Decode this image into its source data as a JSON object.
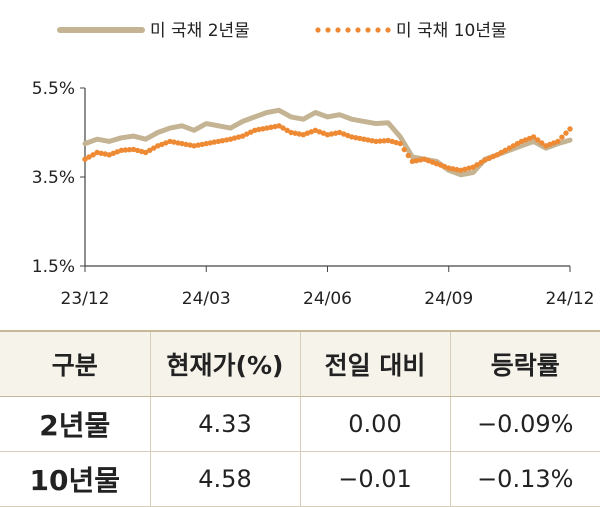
{
  "chart_data": {
    "type": "line",
    "title": "",
    "xlabel": "",
    "ylabel": "",
    "x_ticks": [
      "23/12",
      "24/03",
      "24/06",
      "24/09",
      "24/12"
    ],
    "y_ticks": [
      "5.5%",
      "3.5%",
      "1.5%"
    ],
    "ylim": [
      1.5,
      5.5
    ],
    "xlim": [
      0,
      12
    ],
    "grid": false,
    "legend_position": "top",
    "series": [
      {
        "name": "미 국채 2년물",
        "style": "solid",
        "color": "#c4b493",
        "x": [
          0,
          0.3,
          0.6,
          0.9,
          1.2,
          1.5,
          1.8,
          2.1,
          2.4,
          2.7,
          3.0,
          3.3,
          3.6,
          3.9,
          4.2,
          4.5,
          4.8,
          5.1,
          5.4,
          5.7,
          6.0,
          6.3,
          6.6,
          6.9,
          7.2,
          7.5,
          7.8,
          8.1,
          8.4,
          8.7,
          9.0,
          9.3,
          9.6,
          9.9,
          10.2,
          10.5,
          10.8,
          11.1,
          11.4,
          11.7,
          12.0
        ],
        "values": [
          4.25,
          4.35,
          4.3,
          4.38,
          4.42,
          4.35,
          4.5,
          4.6,
          4.65,
          4.55,
          4.7,
          4.65,
          4.6,
          4.75,
          4.85,
          4.95,
          5.0,
          4.85,
          4.8,
          4.95,
          4.85,
          4.9,
          4.8,
          4.75,
          4.7,
          4.72,
          4.4,
          3.95,
          3.9,
          3.85,
          3.65,
          3.55,
          3.6,
          3.9,
          4.0,
          4.1,
          4.2,
          4.3,
          4.15,
          4.25,
          4.33
        ]
      },
      {
        "name": "미 국채 10년물",
        "style": "dotted",
        "color": "#ee8a34",
        "x": [
          0,
          0.3,
          0.6,
          0.9,
          1.2,
          1.5,
          1.8,
          2.1,
          2.4,
          2.7,
          3.0,
          3.3,
          3.6,
          3.9,
          4.2,
          4.5,
          4.8,
          5.1,
          5.4,
          5.7,
          6.0,
          6.3,
          6.6,
          6.9,
          7.2,
          7.5,
          7.8,
          8.1,
          8.4,
          8.7,
          9.0,
          9.3,
          9.6,
          9.9,
          10.2,
          10.5,
          10.8,
          11.1,
          11.4,
          11.7,
          12.0
        ],
        "values": [
          3.9,
          4.05,
          4.0,
          4.1,
          4.12,
          4.05,
          4.2,
          4.3,
          4.25,
          4.2,
          4.25,
          4.3,
          4.35,
          4.42,
          4.55,
          4.6,
          4.65,
          4.5,
          4.45,
          4.55,
          4.45,
          4.5,
          4.4,
          4.35,
          4.3,
          4.32,
          4.25,
          3.85,
          3.9,
          3.8,
          3.7,
          3.65,
          3.72,
          3.88,
          4.0,
          4.15,
          4.3,
          4.4,
          4.2,
          4.3,
          4.58
        ]
      }
    ]
  },
  "table": {
    "headers": [
      "구분",
      "현재가(%)",
      "전일 대비",
      "등락률"
    ],
    "rows": [
      [
        "2년물",
        "4.33",
        "0.00",
        "−0.09%"
      ],
      [
        "10년물",
        "4.58",
        "−0.01",
        "−0.13%"
      ]
    ]
  }
}
